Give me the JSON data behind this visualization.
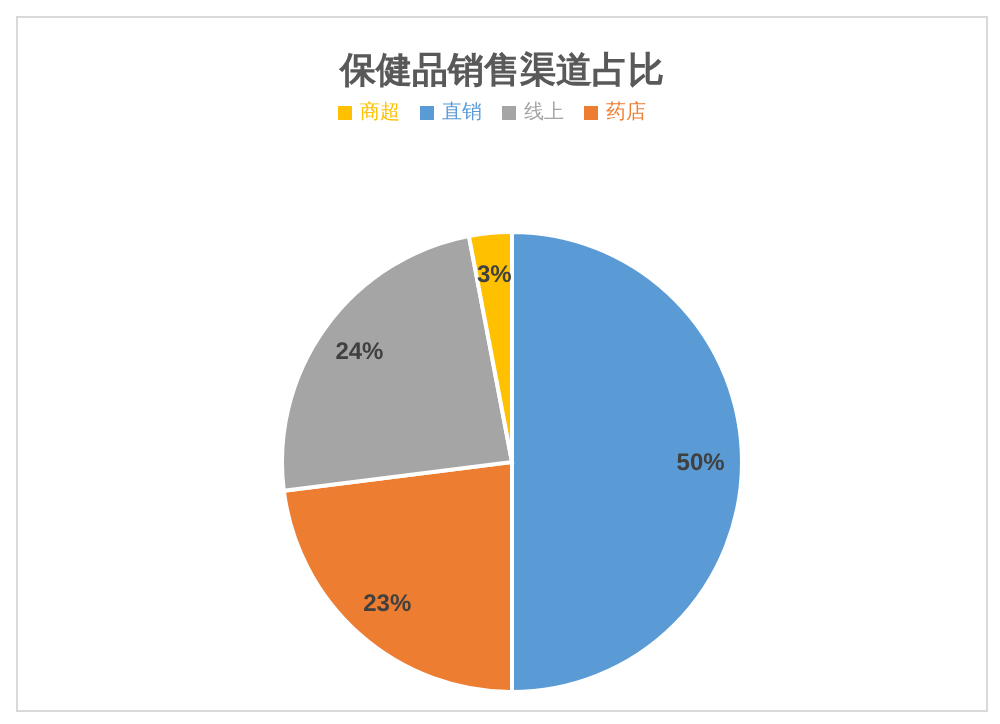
{
  "chart_data": {
    "type": "pie",
    "title": "保健品销售渠道占比",
    "categories": [
      "直销",
      "药店",
      "线上",
      "商超"
    ],
    "values": [
      50,
      23,
      24,
      3
    ],
    "value_labels": [
      "50%",
      "23%",
      "24%",
      "3%"
    ],
    "colors": [
      "#5b9bd5",
      "#ed7d31",
      "#a5a5a5",
      "#ffc000"
    ],
    "legend": "top"
  }
}
